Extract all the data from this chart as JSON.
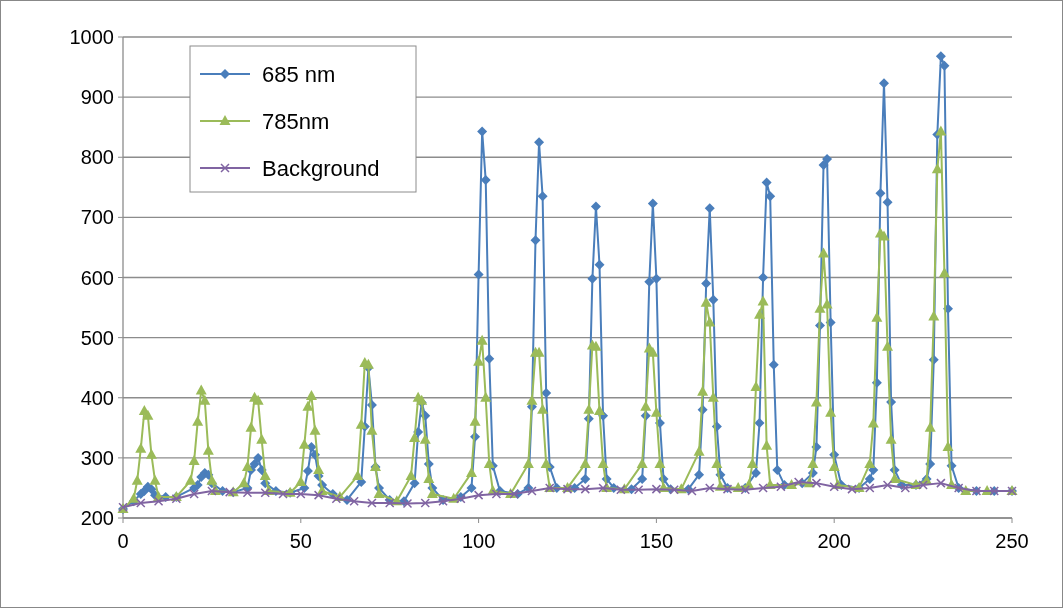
{
  "chart_data": {
    "type": "line",
    "xlim": [
      0,
      250
    ],
    "xticks": [
      0,
      50,
      100,
      150,
      200,
      250
    ],
    "ylim": [
      200,
      1000
    ],
    "yticks": [
      200,
      300,
      400,
      500,
      600,
      700,
      800,
      900,
      1000
    ],
    "grid": "y",
    "legend": "top left",
    "series": [
      {
        "name": "685 nm",
        "color": "#4a7ebb",
        "marker": "diamond",
        "x": [
          0,
          3,
          5,
          6,
          7,
          8,
          9,
          12,
          15,
          20,
          21,
          22,
          23,
          24,
          25,
          28,
          31,
          35,
          36,
          37,
          38,
          39,
          40,
          43,
          47,
          51,
          52,
          53,
          54,
          55,
          56,
          59,
          63,
          67,
          68,
          69,
          70,
          71,
          72,
          75,
          79,
          82,
          83,
          84,
          85,
          86,
          87,
          90,
          95,
          98,
          99,
          100,
          101,
          102,
          103,
          104,
          106,
          111,
          114,
          115,
          116,
          117,
          118,
          119,
          120,
          122,
          127,
          130,
          131,
          132,
          133,
          134,
          135,
          136,
          138,
          143,
          146,
          147,
          148,
          149,
          150,
          151,
          152,
          154,
          159,
          162,
          163,
          164,
          165,
          166,
          167,
          168,
          170,
          175,
          178,
          179,
          180,
          181,
          182,
          183,
          184,
          186,
          191,
          194,
          195,
          196,
          197,
          198,
          199,
          200,
          202,
          207,
          210,
          211,
          212,
          213,
          214,
          215,
          216,
          217,
          219,
          223,
          226,
          227,
          228,
          229,
          230,
          231,
          232,
          233,
          235,
          240,
          245,
          250
        ],
        "values": [
          215,
          228,
          240,
          245,
          252,
          248,
          238,
          235,
          235,
          250,
          255,
          268,
          275,
          272,
          258,
          245,
          243,
          250,
          280,
          290,
          300,
          280,
          258,
          245,
          242,
          250,
          278,
          318,
          305,
          270,
          255,
          240,
          230,
          260,
          352,
          450,
          388,
          285,
          250,
          230,
          228,
          258,
          343,
          392,
          370,
          290,
          250,
          230,
          235,
          250,
          335,
          605,
          843,
          762,
          465,
          287,
          245,
          240,
          250,
          385,
          662,
          825,
          735,
          408,
          285,
          250,
          250,
          265,
          365,
          598,
          718,
          621,
          370,
          265,
          250,
          248,
          265,
          370,
          593,
          723,
          598,
          358,
          265,
          248,
          248,
          272,
          380,
          590,
          715,
          563,
          352,
          272,
          250,
          250,
          275,
          358,
          600,
          758,
          735,
          455,
          280,
          255,
          258,
          275,
          318,
          520,
          787,
          797,
          525,
          305,
          255,
          250,
          265,
          280,
          425,
          740,
          923,
          725,
          393,
          280,
          255,
          255,
          265,
          290,
          463,
          838,
          968,
          952,
          548,
          287,
          250,
          245,
          245,
          245
        ]
      },
      {
        "name": "785nm",
        "color": "#9bbb59",
        "marker": "triangle",
        "x": [
          0,
          3,
          4,
          5,
          6,
          7,
          8,
          9,
          10,
          15,
          19,
          20,
          21,
          22,
          23,
          24,
          25,
          26,
          31,
          34,
          35,
          36,
          37,
          38,
          39,
          40,
          41,
          47,
          50,
          51,
          52,
          53,
          54,
          55,
          56,
          61,
          66,
          67,
          68,
          69,
          70,
          71,
          72,
          77,
          81,
          82,
          83,
          84,
          85,
          86,
          87,
          93,
          98,
          99,
          100,
          101,
          102,
          103,
          104,
          109,
          114,
          115,
          116,
          117,
          118,
          119,
          120,
          125,
          130,
          131,
          132,
          133,
          134,
          135,
          136,
          141,
          146,
          147,
          148,
          149,
          150,
          151,
          152,
          157,
          162,
          163,
          164,
          165,
          166,
          167,
          168,
          173,
          176,
          177,
          178,
          179,
          180,
          181,
          182,
          188,
          193,
          194,
          195,
          196,
          197,
          198,
          199,
          200,
          201,
          207,
          210,
          211,
          212,
          213,
          214,
          215,
          216,
          217,
          223,
          226,
          227,
          228,
          229,
          230,
          231,
          232,
          233,
          237,
          243,
          250
        ],
        "values": [
          215,
          232,
          262,
          315,
          378,
          370,
          305,
          262,
          235,
          235,
          262,
          295,
          360,
          412,
          395,
          312,
          262,
          245,
          243,
          258,
          285,
          350,
          400,
          395,
          330,
          270,
          245,
          242,
          260,
          322,
          385,
          403,
          345,
          280,
          245,
          235,
          270,
          355,
          458,
          455,
          345,
          285,
          240,
          228,
          270,
          333,
          400,
          395,
          330,
          265,
          240,
          232,
          275,
          360,
          460,
          495,
          400,
          290,
          245,
          240,
          290,
          395,
          475,
          475,
          380,
          290,
          250,
          250,
          290,
          380,
          487,
          485,
          378,
          290,
          250,
          248,
          290,
          385,
          482,
          475,
          375,
          290,
          250,
          248,
          310,
          410,
          558,
          525,
          400,
          290,
          252,
          250,
          255,
          290,
          418,
          538,
          560,
          320,
          255,
          255,
          258,
          290,
          392,
          548,
          640,
          555,
          375,
          285,
          255,
          250,
          290,
          357,
          533,
          673,
          668,
          485,
          330,
          265,
          255,
          262,
          350,
          535,
          780,
          843,
          607,
          318,
          255,
          245,
          245,
          245
        ]
      },
      {
        "name": "Background",
        "color": "#8064a2",
        "marker": "cross",
        "x": [
          0,
          5,
          10,
          15,
          20,
          25,
          30,
          35,
          40,
          45,
          50,
          55,
          60,
          65,
          70,
          75,
          80,
          85,
          90,
          95,
          100,
          105,
          110,
          115,
          120,
          125,
          130,
          135,
          140,
          145,
          150,
          155,
          160,
          165,
          170,
          175,
          180,
          185,
          190,
          195,
          200,
          205,
          210,
          215,
          220,
          225,
          230,
          235,
          240,
          245,
          250
        ],
        "values": [
          218,
          225,
          228,
          232,
          240,
          245,
          243,
          242,
          242,
          240,
          240,
          238,
          232,
          228,
          225,
          225,
          224,
          225,
          228,
          232,
          238,
          240,
          240,
          245,
          250,
          248,
          248,
          250,
          247,
          247,
          248,
          247,
          245,
          250,
          248,
          247,
          250,
          252,
          260,
          258,
          252,
          248,
          250,
          255,
          250,
          255,
          258,
          250,
          245,
          245,
          245
        ]
      }
    ]
  }
}
